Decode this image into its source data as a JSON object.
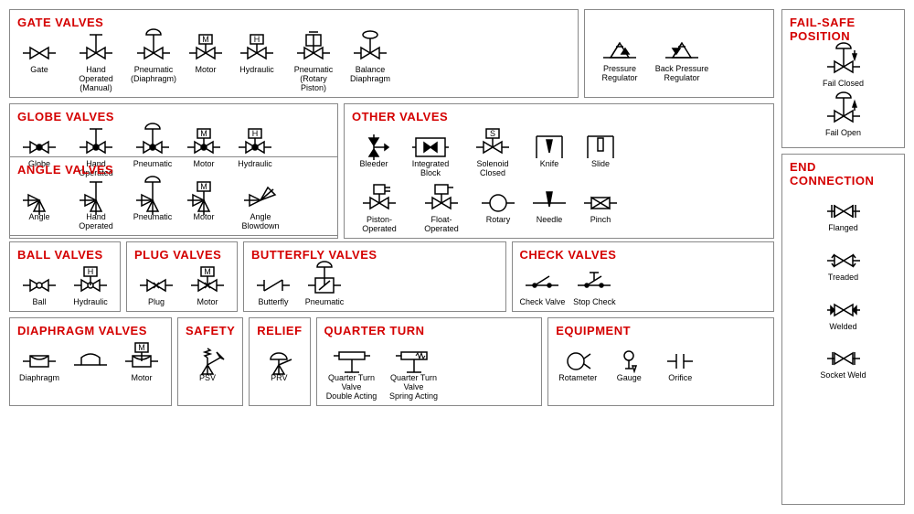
{
  "colors": {
    "heading": "#d40000",
    "stroke": "#000000",
    "fill": "#ffffff",
    "solid": "#000000"
  },
  "stroke_width": 1.5,
  "panels": {
    "gate": {
      "title": "GATE VALVES",
      "items": [
        {
          "label": "Gate",
          "type": "bowtie"
        },
        {
          "label": "Hand Operated\n(Manual)",
          "type": "bowtie",
          "actuator": "tee"
        },
        {
          "label": "Pneumatic\n(Diaphragm)",
          "type": "bowtie",
          "actuator": "dome"
        },
        {
          "label": "Motor",
          "type": "bowtie",
          "actuator": "box",
          "letter": "M"
        },
        {
          "label": "Hydraulic",
          "type": "bowtie",
          "actuator": "box",
          "letter": "H"
        },
        {
          "label": "Pneumatic\n(Rotary Piston)",
          "type": "bowtie",
          "actuator": "piston"
        },
        {
          "label": "Balance\nDiaphragm",
          "type": "bowtie",
          "actuator": "balance"
        }
      ],
      "extra": [
        {
          "label": "Pressure Regulator",
          "type": "regulator",
          "dir": "down"
        },
        {
          "label": "Back Pressure Regulator",
          "type": "regulator",
          "dir": "up"
        }
      ]
    },
    "globe": {
      "title": "GLOBE VALVES",
      "items": [
        {
          "label": "Globe",
          "type": "bowtie",
          "center_dot": true
        },
        {
          "label": "Hand Operated",
          "type": "bowtie",
          "center_dot": true,
          "actuator": "tee"
        },
        {
          "label": "Pneumatic",
          "type": "bowtie",
          "center_dot": true,
          "actuator": "dome"
        },
        {
          "label": "Motor",
          "type": "bowtie",
          "center_dot": true,
          "actuator": "box",
          "letter": "M"
        },
        {
          "label": "Hydraulic",
          "type": "bowtie",
          "center_dot": true,
          "actuator": "box",
          "letter": "H"
        }
      ]
    },
    "other": {
      "title": "OTHER VALVES",
      "row1": [
        {
          "label": "Bleeder",
          "type": "bleeder"
        },
        {
          "label": "Integrated Block",
          "type": "integrated"
        },
        {
          "label": "Solenoid Closed",
          "type": "bowtie",
          "actuator": "box",
          "letter": "S"
        },
        {
          "label": "Knife",
          "type": "knife"
        },
        {
          "label": "Slide",
          "type": "slide"
        }
      ],
      "row2": [
        {
          "label": "Piston-Operated",
          "type": "bowtie",
          "actuator": "piston_small"
        },
        {
          "label": "Float-Operated",
          "type": "bowtie",
          "actuator": "float"
        },
        {
          "label": "Rotary",
          "type": "rotary"
        },
        {
          "label": "Needle",
          "type": "needle"
        },
        {
          "label": "Pinch",
          "type": "pinch"
        }
      ]
    },
    "angle": {
      "title": "ANGLE VALVES",
      "items": [
        {
          "label": "Angle",
          "type": "angle"
        },
        {
          "label": "Hand Operated",
          "type": "angle",
          "actuator": "tee"
        },
        {
          "label": "Pneumatic",
          "type": "angle",
          "actuator": "dome"
        },
        {
          "label": "Motor",
          "type": "angle",
          "actuator": "box",
          "letter": "M"
        },
        {
          "label": "Angle Blowdown",
          "type": "angle_blow"
        }
      ]
    },
    "ball": {
      "title": "BALL VALVES",
      "items": [
        {
          "label": "Ball",
          "type": "bowtie",
          "center_circle": true
        },
        {
          "label": "Hydraulic",
          "type": "bowtie",
          "center_circle": true,
          "actuator": "box",
          "letter": "H"
        }
      ]
    },
    "plug": {
      "title": "PLUG VALVES",
      "items": [
        {
          "label": "Plug",
          "type": "bowtie",
          "center_x": true
        },
        {
          "label": "Motor",
          "type": "bowtie",
          "center_x": true,
          "actuator": "box",
          "letter": "M"
        }
      ]
    },
    "butterfly": {
      "title": "BUTTERFLY VALVES",
      "items": [
        {
          "label": "Butterfly",
          "type": "butterfly"
        },
        {
          "label": "Pneumatic",
          "type": "butterfly_box",
          "actuator": "dome"
        }
      ]
    },
    "check": {
      "title": "CHECK VALVES",
      "items": [
        {
          "label": "Check Valve",
          "type": "check"
        },
        {
          "label": "Stop Check",
          "type": "stopcheck"
        }
      ]
    },
    "diaphragm": {
      "title": "DIAPHRAGM VALVES",
      "items": [
        {
          "label": "Diaphragm",
          "type": "diaphragm"
        },
        {
          "label": "",
          "type": "diaphragm_hump"
        },
        {
          "label": "Motor",
          "type": "diaphragm",
          "actuator": "box",
          "letter": "M"
        }
      ]
    },
    "safety": {
      "title": "SAFETY",
      "items": [
        {
          "label": "PSV",
          "type": "psv"
        }
      ]
    },
    "relief": {
      "title": "RELIEF",
      "items": [
        {
          "label": "PRV",
          "type": "prv"
        }
      ]
    },
    "quarter": {
      "title": "QUARTER TURN",
      "items": [
        {
          "label": "Quarter Turn Valve\nDouble Acting",
          "type": "qturn_double"
        },
        {
          "label": "Quarter Turn Valve\nSpring Acting",
          "type": "qturn_spring"
        }
      ]
    },
    "equipment": {
      "title": "EQUIPMENT",
      "items": [
        {
          "label": "Rotameter",
          "type": "rotameter"
        },
        {
          "label": "Gauge",
          "type": "gauge"
        },
        {
          "label": "Orifice",
          "type": "orifice"
        }
      ]
    },
    "failsafe": {
      "title": "FAIL-SAFE POSITION",
      "items": [
        {
          "label": "Fail Closed",
          "type": "bowtie",
          "actuator": "dome",
          "arrow": "down"
        },
        {
          "label": "Fail Open",
          "type": "bowtie",
          "actuator": "dome",
          "arrow": "up"
        }
      ]
    },
    "endconn": {
      "title": "END CONNECTION",
      "items": [
        {
          "label": "Flanged",
          "type": "bowtie",
          "ends": "flange"
        },
        {
          "label": "Treaded",
          "type": "bowtie",
          "ends": "thread"
        },
        {
          "label": "Welded",
          "type": "bowtie",
          "ends": "weld"
        },
        {
          "label": "Socket Weld",
          "type": "bowtie",
          "ends": "socket"
        }
      ]
    }
  }
}
